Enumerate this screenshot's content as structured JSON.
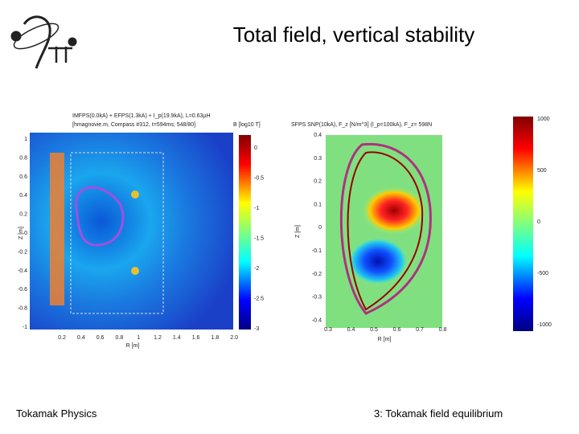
{
  "slide": {
    "title": "Total field, vertical stability",
    "left_plot": {
      "header": [
        "IMFPS(0.0kA) + EFPS(1.3kA) + I_p(19.9kA), L=0.63µH",
        "[hmagnovie.m, Compass #312, t=594ms; 548/80]"
      ],
      "colorbar_title": "B [log10 T]",
      "xlabel": "R [m]",
      "ylabel": "Z [m]",
      "yticks": [
        "1",
        "0.8",
        "0.6",
        "0.4",
        "0.2",
        "0",
        "-0.2",
        "-0.4",
        "-0.6",
        "-0.8",
        "-1"
      ],
      "xticks": [
        "0.2",
        "0.4",
        "0.6",
        "0.8",
        "1",
        "1.2",
        "1.4",
        "1.6",
        "1.8",
        "2.0"
      ],
      "colorbar_ticks": [
        "0",
        "-0.5",
        "-1",
        "-1.5",
        "-2",
        "-2.5",
        "-3"
      ]
    },
    "right_plot": {
      "header": "SFPS SNP(10kA),  F_z [N/m^3] (I_p=100kA),  F_z= 598N",
      "xlabel": "R [m]",
      "ylabel": "Z [m]",
      "yticks": [
        "0.4",
        "0.3",
        "0.2",
        "0.1",
        "0",
        "-0.1",
        "-0.2",
        "-0.3",
        "-0.4"
      ],
      "xticks": [
        "0.3",
        "0.4",
        "0.5",
        "0.6",
        "0.7",
        "0.8"
      ],
      "colorbar_ticks": [
        "1000",
        "500",
        "0",
        "-500",
        "-1000"
      ]
    },
    "footer_left": "Tokamak Physics",
    "footer_right": "3: Tokamak field equilibrium"
  }
}
